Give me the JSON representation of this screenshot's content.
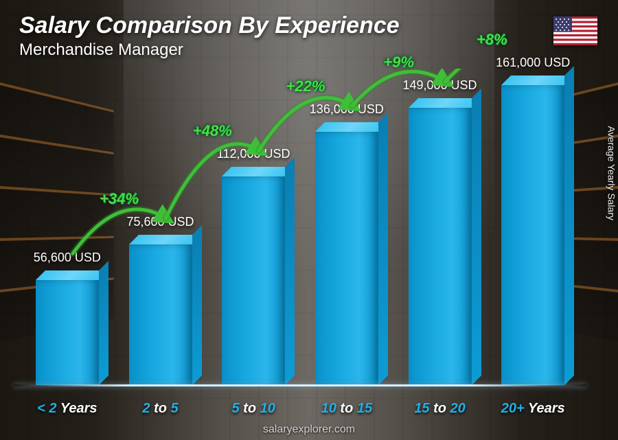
{
  "title": "Salary Comparison By Experience",
  "subtitle": "Merchandise Manager",
  "footer": "salaryexplorer.com",
  "ylabel": "Average Yearly Salary",
  "country_flag": "US",
  "chart": {
    "type": "bar",
    "bar_color": "#19a9e0",
    "bar_top_color": "#5fd0f6",
    "bar_side_color": "#0d9bd4",
    "background": "warehouse-photo",
    "value_fontsize": 18,
    "value_color": "#ffffff",
    "xlabel_color_primary": "#1fb0e8",
    "xlabel_color_secondary": "#ffffff",
    "xlabel_fontsize": 20,
    "pct_color": "#4fdc46",
    "pct_fontsize": 22,
    "arc_stroke": "#3fbf38",
    "arc_fill": "#2a8a26",
    "max_value": 170000,
    "bars": [
      {
        "category_prefix": "< 2",
        "category_suffix": "Years",
        "value": 56600,
        "value_label": "56,600 USD"
      },
      {
        "category_prefix": "2",
        "category_mid": "to",
        "category_suffix": "5",
        "value": 75600,
        "value_label": "75,600 USD",
        "pct_increase": "+34%"
      },
      {
        "category_prefix": "5",
        "category_mid": "to",
        "category_suffix": "10",
        "value": 112000,
        "value_label": "112,000 USD",
        "pct_increase": "+48%"
      },
      {
        "category_prefix": "10",
        "category_mid": "to",
        "category_suffix": "15",
        "value": 136000,
        "value_label": "136,000 USD",
        "pct_increase": "+22%"
      },
      {
        "category_prefix": "15",
        "category_mid": "to",
        "category_suffix": "20",
        "value": 149000,
        "value_label": "149,000 USD",
        "pct_increase": "+9%"
      },
      {
        "category_prefix": "20+",
        "category_suffix": "Years",
        "value": 161000,
        "value_label": "161,000 USD",
        "pct_increase": "+8%"
      }
    ]
  }
}
